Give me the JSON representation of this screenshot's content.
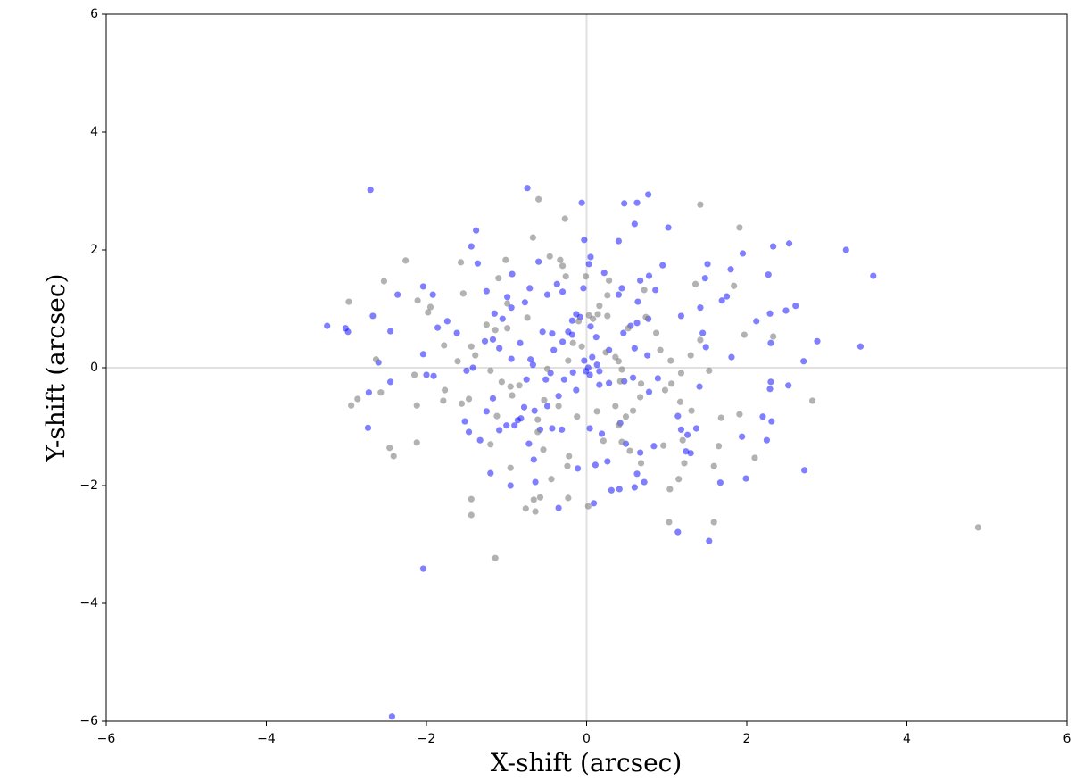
{
  "chart_data": {
    "type": "scatter",
    "x_label": "X-shift (arcsec)",
    "y_label": "Y-shift (arcsec)",
    "xlim": [
      -6,
      6
    ],
    "ylim": [
      -6,
      6
    ],
    "xticks": [
      {
        "value": -6,
        "label": "−6"
      },
      {
        "value": -4,
        "label": "−4"
      },
      {
        "value": -2,
        "label": "−2"
      },
      0,
      2,
      4,
      6
    ],
    "yticks": [
      {
        "value": -6,
        "label": "−6"
      },
      {
        "value": -4,
        "label": "−4"
      },
      {
        "value": -2,
        "label": "−2"
      },
      0,
      2,
      4,
      6
    ],
    "zero_lines": true,
    "series": [
      {
        "color": "#0000ff",
        "alpha": 0.5,
        "x": [
          -2.7,
          -0.74,
          -3.24,
          -3.01,
          -2.98,
          -2.04,
          -2.43,
          -2.73,
          3.58,
          3.24,
          3.42,
          1.53,
          1.14,
          2.53,
          2.33,
          1.95,
          2.72,
          2.88,
          2.71,
          2.61,
          2.49,
          -0.06,
          -0.03,
          0.47,
          0.63,
          0.77,
          0.6,
          1.02,
          0.4,
          -1.38,
          -1.44,
          -2.36,
          -2.04,
          -1.92,
          -2.45,
          -2.67,
          -2.6,
          -2.45,
          -2.72,
          -2.04,
          -2.0,
          -1.91,
          -1.86,
          -1.74,
          -1.62,
          -1.5,
          -1.52,
          -1.47,
          -1.33,
          -1.2,
          -1.25,
          -1.17,
          -1.36,
          -1.25,
          -1.15,
          -1.05,
          -0.94,
          -0.99,
          -0.93,
          -0.6,
          -0.71,
          -0.77,
          -0.83,
          -0.67,
          -0.82,
          -0.9,
          -0.72,
          -0.66,
          -0.64,
          -0.95,
          -0.35,
          0.09,
          0.31,
          0.41,
          0.72,
          0.67,
          0.26,
          0.63,
          1.3,
          1.24,
          1.37,
          1.18,
          1.26,
          1.14,
          1.94,
          1.99,
          1.67,
          2.2,
          2.31,
          2.25,
          2.3,
          2.29,
          2.52,
          2.3,
          2.12,
          2.29,
          2.27,
          1.81,
          1.8,
          1.75,
          1.69,
          1.48,
          1.51,
          1.42,
          1.41,
          1.49,
          1.45,
          1.18,
          0.86,
          0.95,
          0.78,
          0.67,
          0.64,
          -0.04,
          0.05,
          0.03,
          0.22,
          0.44,
          0.4,
          -0.3,
          -0.49,
          -0.37,
          -0.18,
          -0.13,
          -0.08,
          -0.23,
          -0.18,
          -0.03,
          0.02,
          0.04,
          0.07,
          0.13,
          0.16,
          -0.01,
          0.05,
          0.12,
          0.28,
          0.46,
          0.55,
          0.6,
          0.63,
          0.77,
          0.76,
          0.58,
          0.78,
          0.89,
          0.47,
          0.28,
          0.16,
          -0.13,
          -0.17,
          -0.28,
          -0.45,
          -0.51,
          -0.41,
          -0.3,
          -0.43,
          -0.55,
          -0.35,
          -0.49,
          -0.65,
          -0.78,
          -0.86,
          -0.58,
          -0.43,
          -0.31,
          0.04,
          0.19,
          0.42,
          -0.11,
          0.11,
          0.49,
          0.84,
          0.6,
          -1.0,
          -1.09,
          -0.94,
          -1.09,
          -1.17,
          -1.27,
          -1.42,
          -0.7,
          -0.75
        ],
        "y": [
          3.02,
          3.05,
          0.71,
          0.67,
          0.61,
          -3.41,
          -5.92,
          -1.02,
          1.56,
          2.0,
          0.36,
          -2.94,
          -2.79,
          2.11,
          2.06,
          1.94,
          -1.74,
          0.45,
          0.11,
          1.05,
          0.97,
          2.8,
          2.17,
          2.79,
          2.8,
          2.94,
          2.44,
          2.38,
          2.15,
          2.33,
          2.06,
          1.24,
          1.38,
          1.24,
          0.62,
          0.88,
          0.09,
          -0.24,
          -0.42,
          0.23,
          -0.12,
          -0.14,
          0.68,
          0.79,
          0.59,
          -0.05,
          -0.91,
          -1.09,
          -1.23,
          -1.79,
          -0.74,
          -0.52,
          1.77,
          1.3,
          0.92,
          0.83,
          1.02,
          1.2,
          1.59,
          1.8,
          1.35,
          1.11,
          0.42,
          0.05,
          -0.86,
          -0.98,
          -1.29,
          -1.56,
          -1.94,
          -2.0,
          -2.38,
          -2.3,
          -2.08,
          -2.06,
          -1.94,
          -1.44,
          -1.59,
          -1.8,
          -1.45,
          -1.42,
          -1.03,
          -1.05,
          -1.14,
          -0.82,
          -1.17,
          -1.88,
          -1.95,
          -0.83,
          -0.91,
          -1.23,
          -0.24,
          -0.36,
          -0.3,
          0.42,
          0.79,
          0.92,
          1.58,
          0.18,
          1.67,
          1.21,
          1.14,
          1.52,
          1.76,
          1.02,
          -0.32,
          0.35,
          0.59,
          0.88,
          1.32,
          1.74,
          1.56,
          1.48,
          1.12,
          1.35,
          1.88,
          1.76,
          1.61,
          1.35,
          1.24,
          1.29,
          1.24,
          1.42,
          0.8,
          0.91,
          0.86,
          0.61,
          0.56,
          0.12,
          0.0,
          -0.12,
          0.18,
          0.05,
          -0.06,
          -0.06,
          0.7,
          0.52,
          0.3,
          0.59,
          0.71,
          0.33,
          0.76,
          0.83,
          0.21,
          -0.17,
          -0.41,
          -0.18,
          -0.23,
          -0.26,
          -0.29,
          -0.38,
          -0.08,
          -0.2,
          -0.09,
          -0.2,
          0.3,
          0.44,
          0.58,
          0.61,
          -0.48,
          -0.65,
          -0.73,
          -0.67,
          -0.89,
          -1.05,
          -1.03,
          -1.05,
          -1.03,
          -1.12,
          -0.94,
          -1.71,
          -1.65,
          -1.29,
          -1.33,
          -2.03,
          -0.98,
          -1.06,
          0.15,
          0.33,
          0.48,
          0.45,
          0.0,
          0.14,
          -0.2
        ]
      },
      {
        "color": "#7f7f7f",
        "alpha": 0.6,
        "x": [
          -0.6,
          -0.27,
          1.42,
          1.91,
          -0.67,
          -2.26,
          -2.53,
          -2.97,
          -2.11,
          -1.95,
          -1.98,
          -1.57,
          -1.54,
          -1.01,
          -0.46,
          -0.33,
          -0.3,
          -0.26,
          -0.01,
          0.28,
          0.26,
          0.16,
          0.26,
          0.72,
          1.36,
          1.84,
          1.97,
          2.33,
          1.42,
          1.3,
          1.05,
          0.92,
          1.53,
          1.68,
          1.91,
          1.65,
          2.1,
          1.59,
          1.59,
          1.03,
          1.04,
          1.15,
          1.22,
          1.2,
          0.96,
          0.68,
          0.54,
          0.44,
          0.21,
          0.4,
          0.49,
          0.58,
          0.67,
          0.36,
          0.13,
          -0.12,
          -0.35,
          -0.53,
          -0.61,
          -0.61,
          -0.54,
          -0.22,
          -0.24,
          -0.44,
          -0.58,
          -0.66,
          -0.76,
          -0.64,
          -0.23,
          0.02,
          -1.44,
          -1.44,
          -1.14,
          -2.46,
          -2.41,
          -2.12,
          -1.2,
          -0.95,
          -1.47,
          -1.56,
          -1.79,
          -1.77,
          -2.12,
          -2.15,
          -2.57,
          -2.86,
          -2.94,
          -2.63,
          -1.78,
          -1.61,
          -1.39,
          -1.2,
          -1.06,
          -0.95,
          -0.84,
          -0.93,
          -1.12,
          -0.49,
          -0.23,
          -0.17,
          -0.06,
          -0.1,
          0.03,
          0.08,
          0.14,
          0.24,
          0.36,
          0.4,
          0.44,
          0.42,
          0.68,
          0.98,
          1.06,
          1.18,
          1.17,
          1.31,
          2.82,
          0.52,
          0.87,
          0.74,
          -1.1,
          -0.99,
          -0.74,
          -0.99,
          -1.14,
          -1.25,
          -1.44,
          4.89
        ],
        "y": [
          2.86,
          2.53,
          2.77,
          2.38,
          2.21,
          1.82,
          1.47,
          1.12,
          1.14,
          1.03,
          0.94,
          1.79,
          1.26,
          1.83,
          1.89,
          1.83,
          1.73,
          1.55,
          1.55,
          1.48,
          1.23,
          1.05,
          0.88,
          1.32,
          1.42,
          1.39,
          0.56,
          0.53,
          0.47,
          0.21,
          0.12,
          0.3,
          -0.05,
          -0.85,
          -0.79,
          -1.33,
          -1.53,
          -1.67,
          -2.62,
          -2.62,
          -2.06,
          -1.89,
          -1.62,
          -1.23,
          -1.32,
          -1.62,
          -1.41,
          -1.26,
          -1.24,
          -0.98,
          -0.83,
          -0.73,
          -0.5,
          -0.65,
          -0.74,
          -0.83,
          -0.65,
          -0.55,
          -0.88,
          -1.09,
          -1.39,
          -1.5,
          -1.67,
          -1.89,
          -2.2,
          -2.24,
          -2.39,
          -2.44,
          -2.21,
          -2.35,
          -2.23,
          -2.5,
          -3.23,
          -1.36,
          -1.5,
          -1.27,
          -1.3,
          -1.7,
          -0.53,
          -0.61,
          -0.56,
          -0.38,
          -0.64,
          -0.12,
          -0.42,
          -0.53,
          -0.64,
          0.14,
          0.38,
          0.11,
          0.21,
          -0.05,
          -0.24,
          -0.32,
          -0.3,
          -0.47,
          -0.82,
          -0.02,
          0.12,
          0.42,
          0.36,
          0.79,
          0.89,
          0.83,
          0.91,
          0.26,
          0.18,
          0.11,
          -0.03,
          -0.23,
          -0.27,
          -0.38,
          -0.27,
          -0.09,
          -0.58,
          -0.73,
          -0.56,
          0.67,
          0.59,
          0.86,
          1.52,
          1.09,
          0.85,
          0.67,
          0.64,
          0.73,
          0.36,
          -2.71
        ]
      }
    ]
  }
}
